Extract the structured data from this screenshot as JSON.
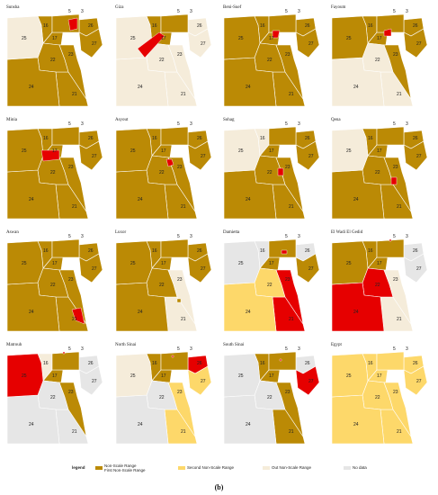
{
  "colors": {
    "first_non_scale": "#bb8a05",
    "second_non_scale": "#fdd86a",
    "out_non_scale": "#f5ecda",
    "no_data": "#e6e6e6",
    "highlight": "#e60000",
    "border": "#ffffff"
  },
  "panels": [
    {
      "title": "Sunsha",
      "fills": {
        "25": "out",
        "24": "first",
        "22": "first",
        "21": "first",
        "23": "first",
        "26": "first",
        "27": "first",
        "16": "first",
        "17": "first",
        "delta": "first",
        "hl": "highlight"
      },
      "highlight_region": "sunsha"
    },
    {
      "title": "Giza",
      "fills": {
        "25": "out",
        "24": "out",
        "22": "out",
        "21": "out",
        "23": "out",
        "26": "out",
        "27": "out",
        "16": "first",
        "17": "first",
        "delta": "first",
        "hl": "highlight"
      },
      "highlight_region": "giza"
    },
    {
      "title": "Beni-Suef",
      "fills": {
        "25": "first",
        "24": "first",
        "22": "first",
        "21": "first",
        "23": "first",
        "26": "first",
        "27": "first",
        "16": "first",
        "17": "first",
        "delta": "first",
        "hl": "highlight"
      },
      "highlight_region": "benisuef"
    },
    {
      "title": "Fayoum",
      "fills": {
        "25": "first",
        "24": "out",
        "22": "out",
        "21": "out",
        "23": "first",
        "26": "first",
        "27": "first",
        "16": "first",
        "17": "first",
        "delta": "first",
        "hl": "highlight"
      },
      "highlight_region": "fayoum"
    },
    {
      "title": "Minia",
      "fills": {
        "25": "first",
        "24": "first",
        "22": "first",
        "21": "first",
        "23": "first",
        "26": "first",
        "27": "first",
        "16": "first",
        "17": "first",
        "delta": "first",
        "hl": "highlight"
      },
      "highlight_region": "minia"
    },
    {
      "title": "Asyout",
      "fills": {
        "25": "first",
        "24": "first",
        "22": "first",
        "21": "first",
        "23": "first",
        "26": "first",
        "27": "first",
        "16": "first",
        "17": "first",
        "delta": "first",
        "hl": "highlight"
      },
      "highlight_region": "asyout"
    },
    {
      "title": "Sohag",
      "fills": {
        "25": "out",
        "24": "first",
        "22": "first",
        "21": "first",
        "23": "first",
        "26": "first",
        "27": "first",
        "16": "out",
        "17": "first",
        "delta": "first",
        "hl": "highlight"
      },
      "highlight_region": "sohag"
    },
    {
      "title": "Qena",
      "fills": {
        "25": "out",
        "24": "first",
        "22": "first",
        "21": "first",
        "23": "first",
        "26": "first",
        "27": "first",
        "16": "first",
        "17": "first",
        "delta": "first",
        "hl": "highlight"
      },
      "highlight_region": "qena"
    },
    {
      "title": "Aswan",
      "fills": {
        "25": "first",
        "24": "first",
        "22": "first",
        "21": "first",
        "23": "first",
        "26": "first",
        "27": "first",
        "16": "first",
        "17": "first",
        "delta": "first",
        "hl": "highlight"
      },
      "highlight_region": "aswan"
    },
    {
      "title": "Luxor",
      "fills": {
        "25": "first",
        "24": "first",
        "22": "first",
        "21": "out",
        "23": "out",
        "26": "first",
        "27": "first",
        "16": "first",
        "17": "first",
        "delta": "first",
        "hl": "first"
      },
      "highlight_region": "luxor"
    },
    {
      "title": "Damietta",
      "fills": {
        "25": "no",
        "24": "second",
        "22": "second",
        "21": "highlight",
        "23": "highlight",
        "26": "no",
        "27": "first",
        "16": "no",
        "17": "first",
        "delta": "first",
        "hl": "highlight"
      },
      "highlight_region": "damietta"
    },
    {
      "title": "El Wadi El Gedid",
      "fills": {
        "25": "first",
        "24": "highlight",
        "22": "highlight",
        "21": "out",
        "23": "out",
        "26": "no",
        "27": "no",
        "16": "first",
        "17": "first",
        "delta": "first",
        "hl": "highlight"
      },
      "highlight_region": "wadi"
    },
    {
      "title": "Matrouh",
      "fills": {
        "25": "highlight",
        "24": "no",
        "22": "no",
        "21": "no",
        "23": "first",
        "26": "no",
        "27": "no",
        "16": "out",
        "17": "first",
        "delta": "first",
        "hl": "highlight"
      },
      "highlight_region": "matrouh"
    },
    {
      "title": "North Sinai",
      "fills": {
        "25": "out",
        "24": "no",
        "22": "no",
        "21": "second",
        "23": "second",
        "26": "highlight",
        "27": "second",
        "16": "first",
        "17": "first",
        "delta": "first",
        "hl": "highlight"
      },
      "highlight_region": "nsinai"
    },
    {
      "title": "South Sinai",
      "fills": {
        "25": "no",
        "24": "no",
        "22": "no",
        "21": "first",
        "23": "first",
        "26": "no",
        "27": "highlight",
        "16": "first",
        "17": "first",
        "delta": "first",
        "hl": "highlight"
      },
      "highlight_region": "ssinai"
    },
    {
      "title": "Egypt",
      "fills": {
        "25": "second",
        "24": "second",
        "22": "second",
        "21": "second",
        "23": "second",
        "26": "second",
        "27": "second",
        "16": "second",
        "17": "second",
        "delta": "second",
        "hl": "second"
      },
      "highlight_region": "none"
    }
  ],
  "region_labels": [
    "25",
    "24",
    "22",
    "21",
    "23",
    "26",
    "27",
    "16",
    "17",
    "5",
    "3"
  ],
  "legend": {
    "title": "legend",
    "items": [
      {
        "label": "Non-Scale Range\nFirst Non-Scale Range",
        "key": "first"
      },
      {
        "label": "Second Non-Scale Range",
        "key": "second"
      },
      {
        "label": "Out Non-Scale Range",
        "key": "out"
      },
      {
        "label": "No data",
        "key": "no"
      }
    ]
  },
  "caption": "(b)"
}
